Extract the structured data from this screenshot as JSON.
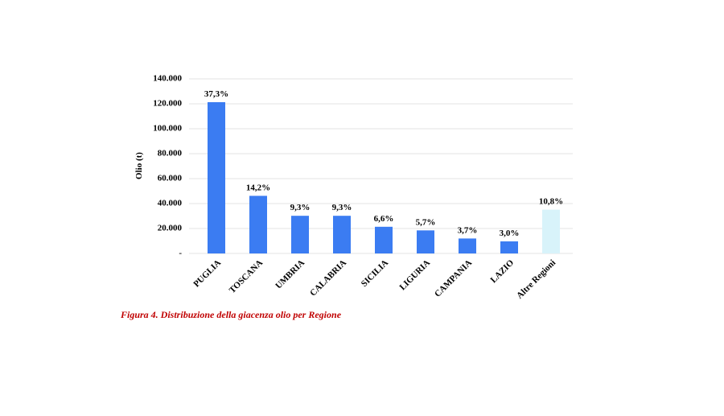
{
  "chart_data": {
    "type": "bar",
    "y_label": "Olio (t)",
    "caption": "Figura 4. Distribuzione della giacenza olio per Regione",
    "categories": [
      "PUGLIA",
      "TOSCANA",
      "UMBRIA",
      "CALABRIA",
      "SICILIA",
      "LIGURIA",
      "CAMPANIA",
      "LAZIO",
      "Altre Regioni"
    ],
    "values": [
      121300,
      46200,
      30200,
      30200,
      21400,
      18500,
      12000,
      9700,
      35100
    ],
    "data_labels": [
      "37,3%",
      "14,2%",
      "9,3%",
      "9,3%",
      "6,6%",
      "5,7%",
      "3,7%",
      "3,0%",
      "10,8%"
    ],
    "colors": [
      "#3b7cf2",
      "#3b7cf2",
      "#3b7cf2",
      "#3b7cf2",
      "#3b7cf2",
      "#3b7cf2",
      "#3b7cf2",
      "#3b7cf2",
      "#d8f3fa"
    ],
    "ylim": [
      0,
      140000
    ],
    "yticks": [
      {
        "value": 0,
        "label": "-"
      },
      {
        "value": 20000,
        "label": "20.000"
      },
      {
        "value": 40000,
        "label": "40.000"
      },
      {
        "value": 60000,
        "label": "60.000"
      },
      {
        "value": 80000,
        "label": "80.000"
      },
      {
        "value": 100000,
        "label": "100.000"
      },
      {
        "value": 120000,
        "label": "120.000"
      },
      {
        "value": 140000,
        "label": "140.000"
      }
    ],
    "grid": true
  }
}
